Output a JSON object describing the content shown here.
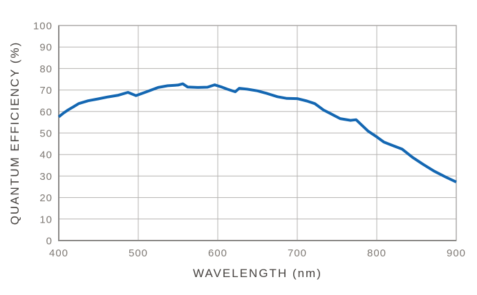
{
  "colors": {
    "background": "#ffffff",
    "line": "#1467b2",
    "grid": "#b5b3b1",
    "border": "#a8a6a4",
    "axis": "#8b8987",
    "tick_text": "#7e7974",
    "title_text": "#45413e"
  },
  "chart_data": {
    "type": "line",
    "title": "",
    "xlabel": "WAVELENGTH (nm)",
    "ylabel": "QUANTUM EFFICIENCY (%)",
    "xlim": [
      400,
      900
    ],
    "ylim": [
      0,
      100
    ],
    "x_ticks": [
      400,
      500,
      600,
      700,
      800,
      900
    ],
    "y_ticks": [
      0,
      10,
      20,
      30,
      40,
      50,
      60,
      70,
      80,
      90,
      100
    ],
    "grid": true,
    "legend": false,
    "series": [
      {
        "name": "quantum-efficiency",
        "color": "#1467b2",
        "x": [
          400,
          406,
          412,
          419,
          425,
          437,
          450,
          462,
          475,
          487,
          497,
          512,
          525,
          537,
          550,
          556,
          562,
          575,
          587,
          596,
          604,
          612,
          622,
          627,
          637,
          650,
          662,
          675,
          687,
          700,
          712,
          722,
          733,
          741,
          754,
          767,
          774,
          789,
          800,
          809,
          822,
          832,
          845,
          858,
          872,
          887,
          900
        ],
        "y": [
          57.5,
          59.3,
          60.8,
          62.3,
          63.7,
          65.0,
          65.9,
          66.8,
          67.6,
          68.9,
          67.4,
          69.4,
          71.2,
          72.0,
          72.3,
          72.9,
          71.4,
          71.2,
          71.3,
          72.4,
          71.5,
          70.4,
          69.2,
          70.8,
          70.4,
          69.6,
          68.4,
          66.9,
          66.1,
          66.0,
          64.9,
          63.7,
          60.7,
          59.2,
          56.7,
          55.9,
          56.2,
          50.9,
          48.2,
          45.8,
          43.9,
          42.5,
          38.7,
          35.5,
          32.3,
          29.5,
          27.2
        ]
      }
    ]
  }
}
